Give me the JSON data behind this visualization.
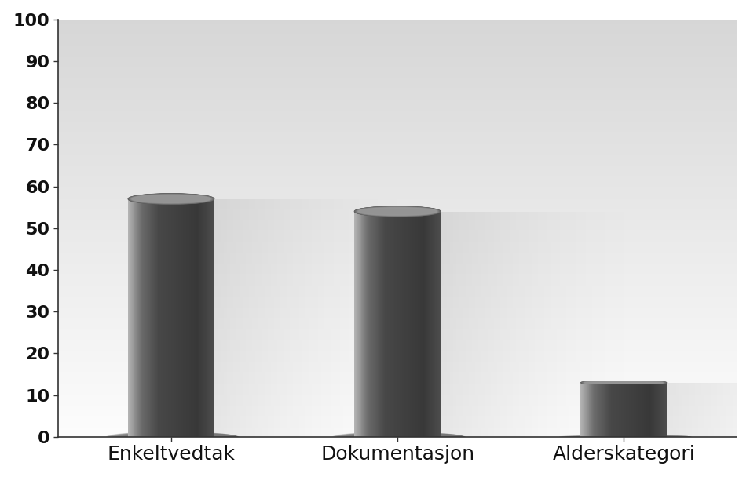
{
  "categories": [
    "Enkeltvedtak",
    "Dokumentasjon",
    "Alderskategori"
  ],
  "values": [
    57,
    54,
    13
  ],
  "ylim": [
    0,
    100
  ],
  "yticks": [
    0,
    10,
    20,
    30,
    40,
    50,
    60,
    70,
    80,
    90,
    100
  ],
  "bar_width": 0.38,
  "background_color": "#ffffff",
  "plot_bg_top": "#d8d8d8",
  "plot_bg_bottom": "#f8f8f8",
  "tick_fontsize": 16,
  "label_fontsize": 18,
  "n_gradient_steps": 120
}
